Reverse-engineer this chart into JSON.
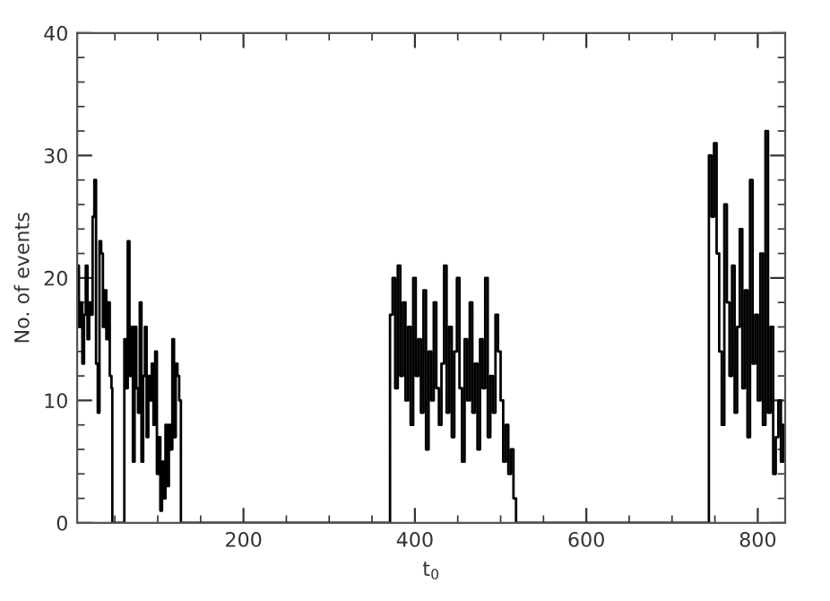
{
  "chart_data": {
    "type": "step",
    "xlabel": "t$_{0}$",
    "ylabel": "No. of events",
    "xlim": [
      6,
      832
    ],
    "xticks": [
      200,
      400,
      600,
      800
    ],
    "ylim": [
      0,
      40
    ],
    "yticks": [
      0,
      10,
      20,
      30,
      40
    ],
    "grid": false,
    "line_style": "solid",
    "marker": "none",
    "series": [
      {
        "color": "#000000",
        "x": [
          6,
          8,
          10,
          12,
          14,
          16,
          18,
          20,
          22,
          24,
          26,
          28,
          30,
          32,
          34,
          36,
          38,
          40,
          42,
          44,
          46,
          47,
          61,
          63,
          65,
          67,
          69,
          71,
          73,
          75,
          77,
          79,
          81,
          83,
          85,
          87,
          89,
          91,
          93,
          95,
          97,
          99,
          101,
          103,
          105,
          107,
          109,
          111,
          113,
          115,
          117,
          119,
          121,
          123,
          125,
          127,
          371,
          374,
          377,
          380,
          383,
          386,
          389,
          392,
          395,
          398,
          401,
          404,
          407,
          410,
          413,
          416,
          419,
          422,
          425,
          428,
          431,
          434,
          437,
          440,
          443,
          446,
          449,
          452,
          455,
          458,
          461,
          464,
          467,
          470,
          473,
          476,
          479,
          482,
          485,
          488,
          491,
          494,
          497,
          500,
          503,
          506,
          509,
          512,
          515,
          518,
          743,
          746,
          749,
          752,
          755,
          758,
          761,
          764,
          767,
          770,
          773,
          776,
          779,
          782,
          785,
          788,
          791,
          794,
          797,
          800,
          803,
          806,
          809,
          812,
          815,
          818,
          821,
          824,
          827,
          830
        ],
        "values": [
          21,
          16,
          18,
          13,
          17,
          21,
          15,
          18,
          17,
          25,
          28,
          13,
          9,
          23,
          22,
          16,
          19,
          15,
          18,
          12,
          11,
          0,
          15,
          11,
          23,
          12,
          16,
          5,
          16,
          11,
          9,
          18,
          5,
          12,
          16,
          7,
          12,
          10,
          13,
          8,
          14,
          4,
          7,
          1,
          5,
          2,
          8,
          3,
          8,
          6,
          15,
          7,
          13,
          12,
          10,
          0,
          17,
          20,
          11,
          21,
          12,
          18,
          10,
          16,
          8,
          20,
          12,
          15,
          9,
          19,
          6,
          14,
          10,
          18,
          11,
          8,
          13,
          21,
          9,
          16,
          7,
          14,
          20,
          11,
          5,
          15,
          10,
          18,
          9,
          13,
          6,
          15,
          11,
          20,
          7,
          12,
          9,
          17,
          14,
          10,
          5,
          8,
          4,
          6,
          2,
          0,
          30,
          25,
          31,
          22,
          14,
          8,
          26,
          18,
          12,
          21,
          9,
          16,
          24,
          11,
          19,
          7,
          28,
          13,
          17,
          10,
          22,
          8,
          32,
          9,
          16,
          4,
          7,
          10,
          5,
          8
        ]
      }
    ]
  }
}
